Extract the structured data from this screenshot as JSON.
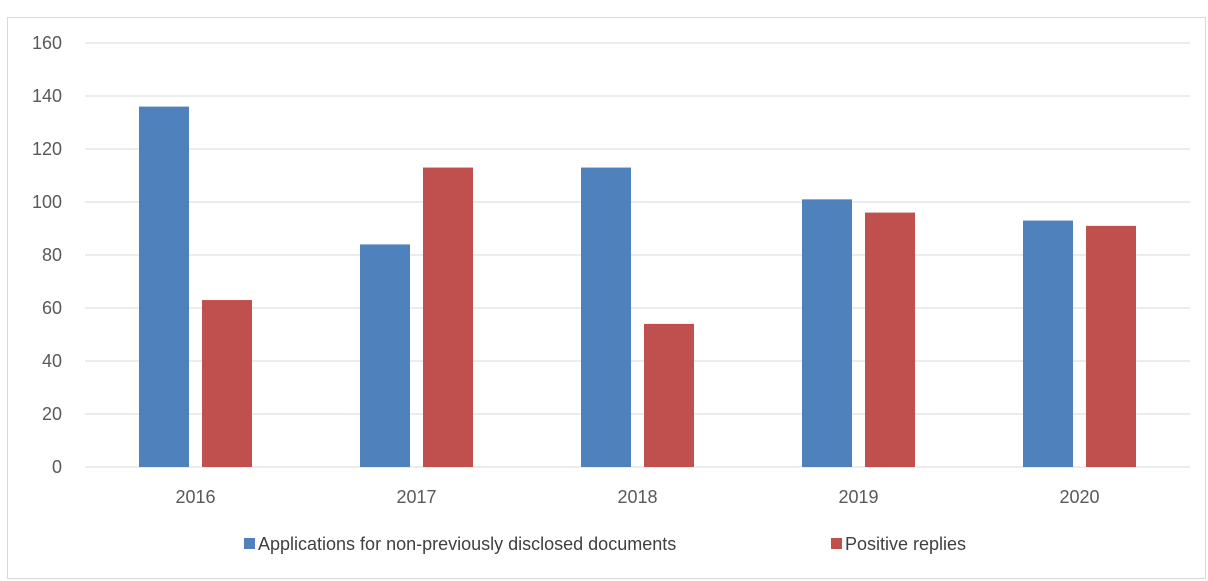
{
  "chart_data": {
    "type": "bar",
    "categories": [
      "2016",
      "2017",
      "2018",
      "2019",
      "2020"
    ],
    "series": [
      {
        "name": "Applications for non-previously disclosed documents",
        "values": [
          136,
          84,
          113,
          101,
          93
        ],
        "color": "#4f81bd"
      },
      {
        "name": "Positive replies",
        "values": [
          63,
          113,
          54,
          96,
          91
        ],
        "color": "#c0504d"
      }
    ],
    "ylim": [
      0,
      160
    ],
    "yticks": [
      0,
      20,
      40,
      60,
      80,
      100,
      120,
      140,
      160
    ],
    "grid": true,
    "legend_position": "bottom",
    "gridline_color": "#d9d9d9"
  }
}
